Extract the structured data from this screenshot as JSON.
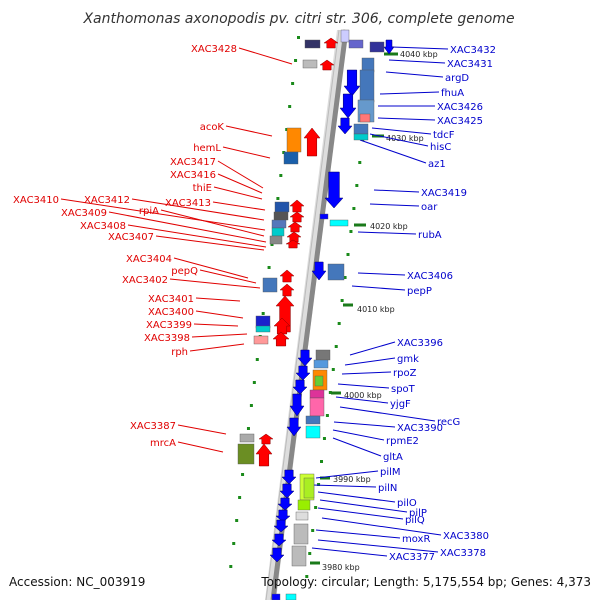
{
  "title": "Xanthomonas axonopodis pv. citri str. 306, complete genome",
  "footer": {
    "accession": "Accession: NC_003919",
    "topology": "Topology: circular; Length: 5,175,554 bp; Genes: 4,373"
  },
  "kbp_ticks": [
    "4040 kbp",
    "4030 kbp",
    "4020 kbp",
    "4010 kbp",
    "4000 kbp",
    "3990 kbp",
    "3980 kbp"
  ],
  "left_labels": [
    "XAC3428",
    "acoK",
    "hemL",
    "XAC3417",
    "XAC3416",
    "thiE",
    "XAC3410",
    "XAC3412",
    "XAC3413",
    "rpiA",
    "XAC3409",
    "XAC3408",
    "XAC3407",
    "XAC3404",
    "pepQ",
    "XAC3402",
    "XAC3401",
    "XAC3400",
    "XAC3399",
    "XAC3398",
    "rph",
    "XAC3387",
    "mrcA"
  ],
  "right_labels": [
    "XAC3432",
    "XAC3431",
    "argD",
    "fhuA",
    "XAC3426",
    "XAC3425",
    "tdcF",
    "hisC",
    "az1",
    "XAC3419",
    "oar",
    "rubA",
    "XAC3406",
    "pepP",
    "XAC3396",
    "gmk",
    "rpoZ",
    "spoT",
    "yjgF",
    "recG",
    "XAC3390",
    "rpmE2",
    "gltA",
    "pilM",
    "pilN",
    "pilO",
    "pilP",
    "pilQ",
    "XAC3380",
    "moxR",
    "XAC3378",
    "XAC3377"
  ],
  "colors": {
    "forward_strand": "#ff0000",
    "reverse_strand": "#0000ff",
    "backbone": "#999999"
  }
}
